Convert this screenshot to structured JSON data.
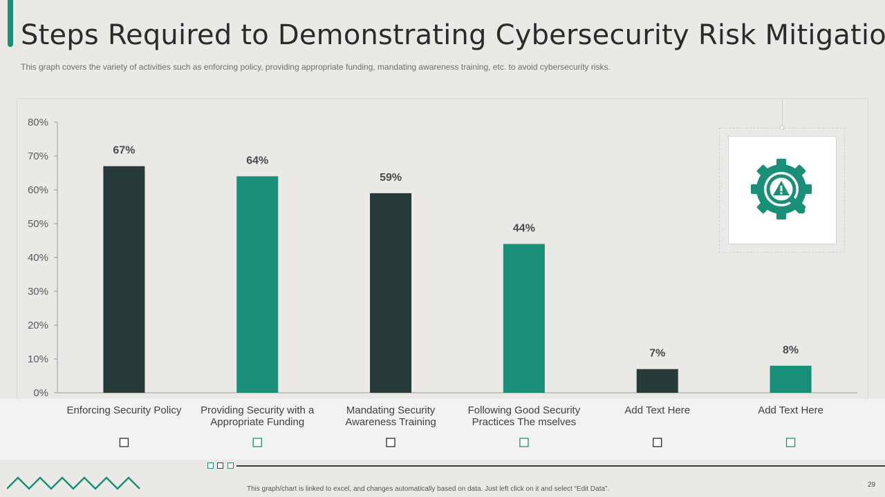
{
  "header": {
    "title": "Steps Required to Demonstrating Cybersecurity Risk Mitigation",
    "subtitle": "This graph covers the variety of activities such as enforcing policy, providing  appropriate funding,  mandating awareness training, etc. to avoid  cybersecurity risks."
  },
  "footer": {
    "note": "This graph/chart is linked to excel, and changes automatically based on data. Just left click on it and select “Edit Data”.",
    "page_number": "29"
  },
  "icon": {
    "name": "gear-warning-search-icon",
    "color": "#1a8f78"
  },
  "colors": {
    "dark": "#263a3a",
    "teal": "#1a8f78",
    "accent": "#1a8f78"
  },
  "chart_data": {
    "type": "bar",
    "categories": [
      [
        "Enforcing Security Policy"
      ],
      [
        "Providing Security with a",
        "Appropriate Funding"
      ],
      [
        "Mandating Security",
        "Awareness Training"
      ],
      [
        "Following Good Security",
        "Practices The mselves"
      ],
      [
        "Add Text Here"
      ],
      [
        "Add Text Here"
      ]
    ],
    "values": [
      67,
      64,
      59,
      44,
      7,
      8
    ],
    "value_labels": [
      "67%",
      "64%",
      "59%",
      "44%",
      "7%",
      "8%"
    ],
    "bar_colors": [
      "#263a3a",
      "#1a8f78",
      "#263a3a",
      "#1a8f78",
      "#263a3a",
      "#1a8f78"
    ],
    "y_ticks": [
      "0%",
      "10%",
      "20%",
      "30%",
      "40%",
      "50%",
      "60%",
      "70%",
      "80%"
    ],
    "ylim": [
      0,
      80
    ],
    "grid": false
  }
}
